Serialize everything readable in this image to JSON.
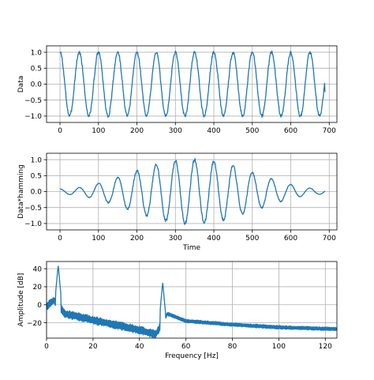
{
  "chart_data": [
    {
      "type": "line",
      "xlabel": "",
      "ylabel": "Data",
      "grid": true,
      "xlim": [
        -35,
        720
      ],
      "ylim": [
        -1.2,
        1.2
      ],
      "xticks": [
        0,
        100,
        200,
        300,
        400,
        500,
        600,
        700
      ],
      "yticks": [
        -1.0,
        -0.5,
        0.0,
        0.5,
        1.0
      ],
      "xtick_labels": [
        "0",
        "100",
        "200",
        "300",
        "400",
        "500",
        "600",
        "700"
      ],
      "ytick_labels": [
        "−1.0",
        "−0.5",
        "0.0",
        "0.5",
        "1.0"
      ],
      "color": "#1f77b4",
      "series": [
        {
          "signal": "noisy sine",
          "samples": 690,
          "period": 50,
          "amplitude": 1.0,
          "phase_deg": 90,
          "noise": 0.05,
          "end_x": 687,
          "end_y": -0.25
        }
      ]
    },
    {
      "type": "line",
      "xlabel": "Time",
      "ylabel": "Data*hamming",
      "grid": true,
      "xlim": [
        -35,
        720
      ],
      "ylim": [
        -1.2,
        1.2
      ],
      "xticks": [
        0,
        100,
        200,
        300,
        400,
        500,
        600,
        700
      ],
      "yticks": [
        -1.0,
        -0.5,
        0.0,
        0.5,
        1.0
      ],
      "xtick_labels": [
        "0",
        "100",
        "200",
        "300",
        "400",
        "500",
        "600",
        "700"
      ],
      "ytick_labels": [
        "−1.0",
        "−0.5",
        "0.0",
        "0.5",
        "1.0"
      ],
      "color": "#1f77b4",
      "series": [
        {
          "signal": "noisy sine × hamming window",
          "samples": 690,
          "period": 50,
          "amplitude": 1.0,
          "phase_deg": 90,
          "noise": 0.05,
          "window_min": 0.08,
          "window_peak_x": 343
        }
      ]
    },
    {
      "type": "line",
      "xlabel": "Frequency [Hz]",
      "ylabel": "Amplitude [dB]",
      "grid": true,
      "xlim": [
        0,
        125
      ],
      "ylim": [
        -37,
        48
      ],
      "xticks": [
        0,
        20,
        40,
        60,
        80,
        100,
        120
      ],
      "yticks": [
        -20,
        0,
        20,
        40
      ],
      "xtick_labels": [
        "0",
        "20",
        "40",
        "60",
        "80",
        "100",
        "120"
      ],
      "ytick_labels": [
        "−20",
        "0",
        "20",
        "40"
      ],
      "color": "#1f77b4",
      "peaks": [
        {
          "x": 5,
          "y": 44
        },
        {
          "x": 50,
          "y": 25
        }
      ],
      "floor_points": [
        [
          0,
          -2
        ],
        [
          3,
          5
        ],
        [
          8,
          -10
        ],
        [
          20,
          -17
        ],
        [
          40,
          -28
        ],
        [
          47,
          -33
        ],
        [
          52,
          -10
        ],
        [
          60,
          -18
        ],
        [
          80,
          -22
        ],
        [
          100,
          -25
        ],
        [
          125,
          -27
        ]
      ]
    }
  ]
}
